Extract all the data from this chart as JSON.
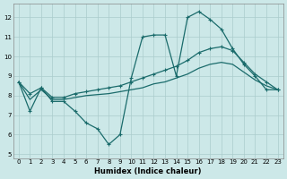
{
  "xlabel": "Humidex (Indice chaleur)",
  "bg_color": "#cce8e8",
  "grid_color": "#aacccc",
  "line_color": "#1a6b6b",
  "xlim": [
    -0.5,
    23.5
  ],
  "ylim": [
    4.8,
    12.7
  ],
  "yticks": [
    5,
    6,
    7,
    8,
    9,
    10,
    11,
    12
  ],
  "xticks": [
    0,
    1,
    2,
    3,
    4,
    5,
    6,
    7,
    8,
    9,
    10,
    11,
    12,
    13,
    14,
    15,
    16,
    17,
    18,
    19,
    20,
    21,
    22,
    23
  ],
  "series1_x": [
    0,
    1,
    2,
    3,
    4,
    5,
    6,
    7,
    8,
    9,
    10,
    11,
    12,
    13,
    14,
    15,
    16,
    17,
    18,
    19,
    20,
    21,
    22,
    23
  ],
  "series1_y": [
    8.7,
    7.2,
    8.4,
    7.7,
    7.7,
    7.2,
    6.6,
    6.3,
    5.5,
    6.0,
    8.9,
    11.0,
    11.1,
    11.1,
    9.0,
    12.0,
    12.3,
    11.9,
    11.4,
    10.4,
    9.6,
    9.0,
    8.3,
    8.3
  ],
  "series2_x": [
    0,
    1,
    2,
    3,
    4,
    5,
    6,
    7,
    8,
    9,
    10,
    11,
    12,
    13,
    14,
    15,
    16,
    17,
    18,
    19,
    20,
    21,
    22,
    23
  ],
  "series2_y": [
    8.7,
    8.1,
    8.4,
    7.9,
    7.9,
    8.1,
    8.2,
    8.3,
    8.4,
    8.5,
    8.7,
    8.9,
    9.1,
    9.3,
    9.5,
    9.8,
    10.2,
    10.4,
    10.5,
    10.3,
    9.7,
    9.1,
    8.7,
    8.3
  ],
  "series3_x": [
    0,
    1,
    2,
    3,
    4,
    5,
    6,
    7,
    8,
    9,
    10,
    11,
    12,
    13,
    14,
    15,
    16,
    17,
    18,
    19,
    20,
    21,
    22,
    23
  ],
  "series3_y": [
    8.7,
    7.8,
    8.3,
    7.8,
    7.8,
    7.9,
    8.0,
    8.05,
    8.1,
    8.2,
    8.3,
    8.4,
    8.6,
    8.7,
    8.9,
    9.1,
    9.4,
    9.6,
    9.7,
    9.6,
    9.2,
    8.8,
    8.5,
    8.3
  ]
}
